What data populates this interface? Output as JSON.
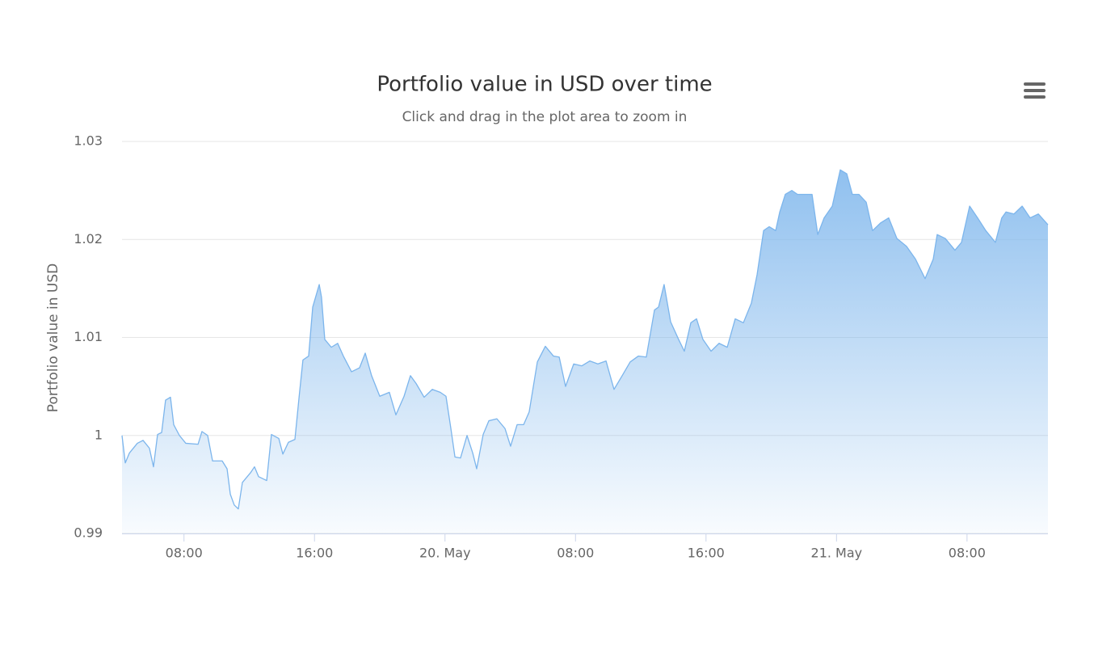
{
  "chart_data": {
    "type": "area",
    "title": "Portfolio value in USD over time",
    "subtitle": "Click and drag in the plot area to zoom in",
    "y_label": "Portfolio value in USD",
    "color": "#7cb5ec",
    "grid": true,
    "xlim": [
      4.2,
      60.96
    ],
    "xticks": [
      {
        "value": 8,
        "label": "08:00"
      },
      {
        "value": 16,
        "label": "16:00"
      },
      {
        "value": 24,
        "label": "20. May"
      },
      {
        "value": 32,
        "label": "08:00"
      },
      {
        "value": 40,
        "label": "16:00"
      },
      {
        "value": 48,
        "label": "21. May"
      },
      {
        "value": 56,
        "label": "08:00"
      }
    ],
    "ylim": [
      0.99,
      1.03
    ],
    "yticks": [
      0.99,
      1,
      1.01,
      1.02,
      1.03
    ],
    "x": [
      4.2,
      4.4,
      4.65,
      5.14,
      5.49,
      5.88,
      6.13,
      6.38,
      6.63,
      6.87,
      7.17,
      7.37,
      7.72,
      8.11,
      8.86,
      9.1,
      9.45,
      9.75,
      10.34,
      10.64,
      10.84,
      11.08,
      11.33,
      11.58,
      12.08,
      12.32,
      12.57,
      13.07,
      13.36,
      13.81,
      14.06,
      14.4,
      14.8,
      15.06,
      15.29,
      15.64,
      15.89,
      16.29,
      16.43,
      16.63,
      17.03,
      17.42,
      17.77,
      18.27,
      18.76,
      19.11,
      19.5,
      20.0,
      20.59,
      20.99,
      21.49,
      21.88,
      22.23,
      22.72,
      23.22,
      23.71,
      24.06,
      24.36,
      24.61,
      24.95,
      25.35,
      25.7,
      25.94,
      26.34,
      26.69,
      27.18,
      27.68,
      28.02,
      28.42,
      28.82,
      29.16,
      29.66,
      30.15,
      30.65,
      31.0,
      31.39,
      31.89,
      32.38,
      32.88,
      33.37,
      33.87,
      34.36,
      34.86,
      35.35,
      35.85,
      36.34,
      36.84,
      37.09,
      37.43,
      37.83,
      38.32,
      38.67,
      39.07,
      39.42,
      39.81,
      40.31,
      40.8,
      41.3,
      41.79,
      42.29,
      42.78,
      43.13,
      43.53,
      43.87,
      44.27,
      44.52,
      44.86,
      45.26,
      45.61,
      46.0,
      46.5,
      46.85,
      47.24,
      47.74,
      48.23,
      48.63,
      48.97,
      49.37,
      49.82,
      50.21,
      50.71,
      51.2,
      51.7,
      52.29,
      52.84,
      53.43,
      53.93,
      54.17,
      54.67,
      55.26,
      55.66,
      56.16,
      56.65,
      57.15,
      57.74,
      58.13,
      58.39,
      58.88,
      59.38,
      59.87,
      60.37,
      60.96
    ],
    "values": [
      1.0,
      0.9972,
      0.9982,
      0.9992,
      0.9995,
      0.9987,
      0.9968,
      1.0001,
      1.0003,
      1.0036,
      1.0039,
      1.0011,
      1.0,
      0.9992,
      0.9991,
      1.0004,
      1.0,
      0.9974,
      0.9974,
      0.9966,
      0.994,
      0.9929,
      0.9925,
      0.9952,
      0.9962,
      0.9968,
      0.9958,
      0.9954,
      1.0001,
      0.9997,
      0.9981,
      0.9993,
      0.9996,
      1.004,
      1.0077,
      1.0081,
      1.0131,
      1.0154,
      1.0141,
      1.0098,
      1.009,
      1.0094,
      1.0081,
      1.0065,
      1.0069,
      1.0084,
      1.0061,
      1.004,
      1.0044,
      1.0021,
      1.004,
      1.0061,
      1.0053,
      1.0039,
      1.0047,
      1.0044,
      1.004,
      1.0007,
      0.9978,
      0.9977,
      1.0,
      0.9982,
      0.9966,
      1.0001,
      1.0015,
      1.0017,
      1.0007,
      0.9989,
      1.0011,
      1.0011,
      1.0024,
      1.0075,
      1.0091,
      1.0081,
      1.008,
      1.005,
      1.0073,
      1.0071,
      1.0076,
      1.0073,
      1.0076,
      1.0047,
      1.0061,
      1.0075,
      1.0081,
      1.008,
      1.0128,
      1.0131,
      1.0154,
      1.0116,
      1.0098,
      1.0086,
      1.0115,
      1.0119,
      1.0098,
      1.0086,
      1.0094,
      1.009,
      1.0119,
      1.0115,
      1.0135,
      1.0164,
      1.0209,
      1.0213,
      1.0209,
      1.0228,
      1.0246,
      1.025,
      1.0246,
      1.0246,
      1.0246,
      1.0205,
      1.0222,
      1.0234,
      1.0271,
      1.0267,
      1.0246,
      1.0246,
      1.0238,
      1.0209,
      1.0217,
      1.0222,
      1.0201,
      1.0193,
      1.018,
      1.016,
      1.018,
      1.0205,
      1.0201,
      1.0189,
      1.0197,
      1.0234,
      1.0222,
      1.0209,
      1.0197,
      1.0222,
      1.0228,
      1.0226,
      1.0234,
      1.0222,
      1.0226,
      1.0215
    ]
  }
}
